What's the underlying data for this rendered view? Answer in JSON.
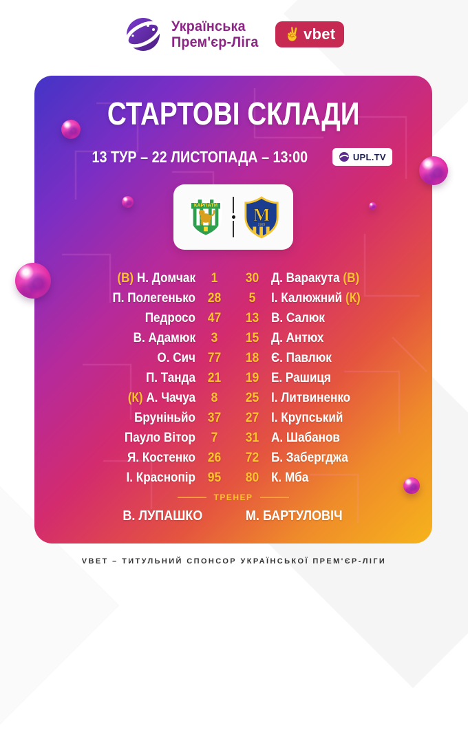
{
  "header": {
    "league_name": [
      "Українська",
      "Прем'єр-Ліга"
    ],
    "sponsor": "vbet"
  },
  "poster": {
    "title": "СТАРТОВІ СКЛАДИ",
    "match_info": "13 ТУР – 22 ЛИСТОПАДА – 13:00",
    "tv_badge": "UPL.TV",
    "home_team": {
      "logo_caption": "КАРПАТИ"
    },
    "away_team": {
      "logo_letter": "M",
      "logo_year": "1925"
    },
    "lineups": {
      "home": [
        {
          "marker": "(В)",
          "name": "Н. Домчак",
          "number": "1"
        },
        {
          "name": "П. Полегенько",
          "number": "28"
        },
        {
          "name": "Педросо",
          "number": "47"
        },
        {
          "name": "В. Адамюк",
          "number": "3"
        },
        {
          "name": "О. Сич",
          "number": "77"
        },
        {
          "name": "П. Танда",
          "number": "21"
        },
        {
          "marker": "(К)",
          "name": "А. Чачуа",
          "number": "8"
        },
        {
          "name": "Бруніньйо",
          "number": "37"
        },
        {
          "name": "Пауло Вітор",
          "number": "7"
        },
        {
          "name": "Я. Костенко",
          "number": "26"
        },
        {
          "name": "І. Краснопір",
          "number": "95"
        }
      ],
      "away": [
        {
          "number": "30",
          "name": "Д. Варакута",
          "marker": "(В)"
        },
        {
          "number": "5",
          "name": "І. Калюжний",
          "marker": "(К)"
        },
        {
          "number": "13",
          "name": "В. Салюк"
        },
        {
          "number": "15",
          "name": "Д. Антюх"
        },
        {
          "number": "18",
          "name": "Є. Павлюк"
        },
        {
          "number": "19",
          "name": "Е. Рашиця"
        },
        {
          "number": "25",
          "name": "І. Литвиненко"
        },
        {
          "number": "27",
          "name": "І. Крупський"
        },
        {
          "number": "31",
          "name": "А. Шабанов"
        },
        {
          "number": "72",
          "name": "Б. Забергджа"
        },
        {
          "number": "80",
          "name": "К. Мба"
        }
      ]
    },
    "coach_label": "ТРЕНЕР",
    "coaches": [
      "В. ЛУПАШКО",
      "М. БАРТУЛОВІЧ"
    ]
  },
  "footer": {
    "text": "VBET – ТИТУЛЬНИЙ СПОНСОР УКРАЇНСЬКОЇ ПРЕМ'ЄР-ЛІГИ"
  },
  "colors": {
    "accent_yellow": "#ffc22b",
    "league_purple": "#8b2685",
    "vbet_red": "#c62a52",
    "gradient_start": "#4334c6",
    "gradient_mid": "#d32b6e",
    "gradient_end": "#f6b31b"
  }
}
